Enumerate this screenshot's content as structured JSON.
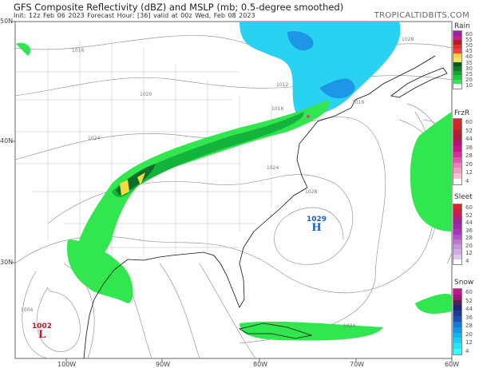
{
  "header": {
    "title": "GFS Composite Reflectivity (dBZ) and MSLP (mb; 0.5-degree smoothed)",
    "subtitle": "Init: 12z Feb 06 2023   Forecast Hour: [36]   valid at 00z Wed, Feb 08 2023",
    "brand": "TROPICALTIDBITS.COM"
  },
  "axes": {
    "lat_labels": [
      "50N",
      "40N",
      "30N"
    ],
    "lon_labels": [
      "100W",
      "90W",
      "80W",
      "70W",
      "60W"
    ]
  },
  "pressure_centers": [
    {
      "type": "H",
      "value": "1029",
      "color": "#1a5fbf"
    },
    {
      "type": "L",
      "value": "1002",
      "color": "#c0152a"
    }
  ],
  "isobar_labels": [
    "1016",
    "1020",
    "1024",
    "1012",
    "1016",
    "1024",
    "1028",
    "1004",
    "1024",
    "1028",
    "1016"
  ],
  "legends": [
    {
      "name": "Rain",
      "labels": [
        "60",
        "55",
        "50",
        "45",
        "40",
        "35",
        "30",
        "25",
        "20",
        "10"
      ],
      "colors": [
        "#a020a0",
        "#c81e8c",
        "#b41e1e",
        "#dc3232",
        "#e84646",
        "#f0d23c",
        "#f5e15a",
        "#0a5a1e",
        "#0f7d28",
        "#14a032",
        "#1ec83c",
        "#32e650",
        "#ffffff"
      ]
    },
    {
      "name": "FrzR",
      "labels": [
        "60",
        "52",
        "44",
        "36",
        "28",
        "20",
        "12",
        "4"
      ],
      "colors": [
        "#d22828",
        "#c82828",
        "#b41e32",
        "#a51e3c",
        "#b4146e",
        "#c8148c",
        "#d23296",
        "#dc5aaa",
        "#e682b4",
        "#eea0c0",
        "#f5c0cf",
        "#ffffff"
      ]
    },
    {
      "name": "Sleet",
      "labels": [
        "60",
        "52",
        "44",
        "36",
        "28",
        "20",
        "12",
        "4"
      ],
      "colors": [
        "#d22828",
        "#c81e50",
        "#b41e78",
        "#962896",
        "#a028aa",
        "#aa32be",
        "#b450c8",
        "#be78d2",
        "#c896dc",
        "#d2aae6",
        "#dcc8ee",
        "#ffffff"
      ]
    },
    {
      "name": "Snow",
      "labels": [
        "60",
        "52",
        "44",
        "36",
        "28",
        "20",
        "12",
        "4"
      ],
      "colors": [
        "#c8148c",
        "#a01478",
        "#5a1e50",
        "#1e2878",
        "#1e3c96",
        "#1e50b4",
        "#1478dc",
        "#1496e6",
        "#14b4f0",
        "#1ecdf5",
        "#28e6fa",
        "#32ffff"
      ]
    }
  ],
  "precip_colors": {
    "light_green": "#32e650",
    "mid_green": "#14b43c",
    "dark_green": "#0a6e28",
    "light_blue": "#28d2f0",
    "mid_blue": "#1e96e6",
    "yellow": "#f5dc3c",
    "pink": "#dc3c9c"
  }
}
